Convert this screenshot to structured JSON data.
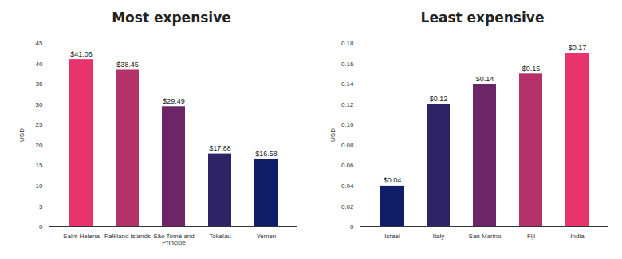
{
  "chart_data": [
    {
      "type": "bar",
      "title": "Most expensive",
      "categories": [
        "Saint Helena",
        "Falkland Islands",
        "São Tomé and Príncipe",
        "Tokelau",
        "Yemen"
      ],
      "values": [
        41.06,
        38.45,
        29.49,
        17.88,
        16.58
      ],
      "value_labels": [
        "$41.06",
        "$38.45",
        "$29.49",
        "$17.88",
        "$16.58"
      ],
      "colors": [
        "#e8336d",
        "#b5316a",
        "#6c2566",
        "#2e2366",
        "#0f1e66"
      ],
      "ylabel": "USD",
      "ylim": [
        0,
        45
      ],
      "yticks": [
        0,
        5,
        10,
        15,
        20,
        25,
        30,
        35,
        40,
        45
      ],
      "data_labels": true,
      "grid": false
    },
    {
      "type": "bar",
      "title": "Least expensive",
      "categories": [
        "Israel",
        "Italy",
        "San Marino",
        "Fiji",
        "India"
      ],
      "values": [
        0.04,
        0.12,
        0.14,
        0.15,
        0.17
      ],
      "value_labels": [
        "$0.04",
        "$0.12",
        "$0.14",
        "$0.15",
        "$0.17"
      ],
      "colors": [
        "#0f1e66",
        "#2e2366",
        "#6c2566",
        "#b5316a",
        "#e8336d"
      ],
      "ylabel": "USD",
      "ylim": [
        0,
        0.18
      ],
      "yticks": [
        0,
        0.02,
        0.04,
        0.06,
        0.08,
        {
          "value": 0.1,
          "label": "0.10"
        },
        0.12,
        0.14,
        0.16,
        0.18
      ],
      "data_labels": true,
      "grid": false
    }
  ]
}
